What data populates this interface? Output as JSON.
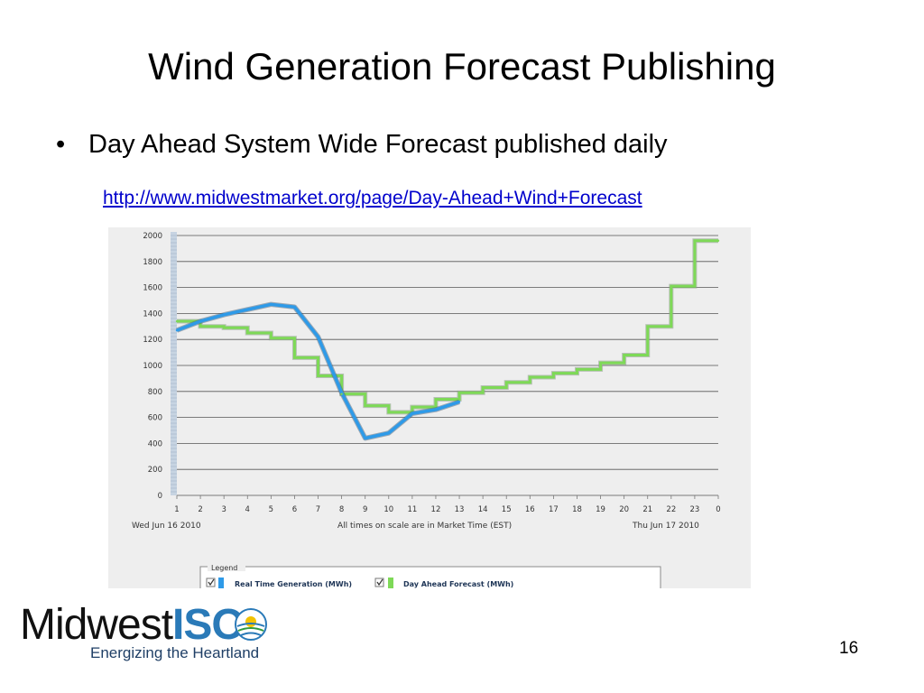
{
  "slide": {
    "title": "Wind Generation Forecast Publishing",
    "bullet_glyph": "•",
    "bullet_text": "Day Ahead System Wide Forecast published daily",
    "link": "http://www.midwestmarket.org/page/Day-Ahead+Wind+Forecast",
    "page_number": "16"
  },
  "logo": {
    "word_1": "Midwest",
    "word_2": "ISO",
    "tagline": "Energizing the Heartland",
    "sun_icon": "sun-globe-icon"
  },
  "colors": {
    "real_time": "#2e9ae8",
    "day_ahead": "#7ed957",
    "grid": "#444444",
    "panel_bg": "#eeeeee",
    "link": "#0000cc"
  },
  "chart_data": {
    "type": "line",
    "yticks": [
      "0",
      "200",
      "400",
      "600",
      "800",
      "1000",
      "1200",
      "1400",
      "1600",
      "1800",
      "2000"
    ],
    "ylim": [
      0,
      2000
    ],
    "categories": [
      "1",
      "2",
      "3",
      "4",
      "5",
      "6",
      "7",
      "8",
      "9",
      "10",
      "11",
      "12",
      "13",
      "14",
      "15",
      "16",
      "17",
      "18",
      "19",
      "20",
      "21",
      "22",
      "23",
      "0"
    ],
    "x_left_label": "Wed Jun 16 2010",
    "x_center_label": "All times on scale are in Market Time (EST)",
    "x_right_label": "Thu Jun 17 2010",
    "grid": true,
    "legend_position": "bottom",
    "legend_title": "Legend",
    "series": [
      {
        "name": "Real Time Generation (MWh)",
        "style": "line",
        "x": [
          1,
          2,
          3,
          4,
          5,
          6,
          7,
          8,
          9,
          10,
          11,
          12,
          13
        ],
        "values": [
          1270,
          1340,
          1390,
          1430,
          1470,
          1450,
          1220,
          790,
          440,
          480,
          630,
          660,
          720
        ]
      },
      {
        "name": "Day Ahead Forecast (MWh)",
        "style": "step",
        "x": [
          1,
          2,
          3,
          4,
          5,
          6,
          7,
          8,
          9,
          10,
          11,
          12,
          13,
          14,
          15,
          16,
          17,
          18,
          19,
          20,
          21,
          22,
          23,
          0
        ],
        "values": [
          1340,
          1300,
          1290,
          1250,
          1210,
          1060,
          920,
          780,
          690,
          640,
          680,
          740,
          790,
          830,
          870,
          910,
          940,
          970,
          1020,
          1080,
          1300,
          1610,
          1960,
          1960
        ]
      }
    ]
  }
}
